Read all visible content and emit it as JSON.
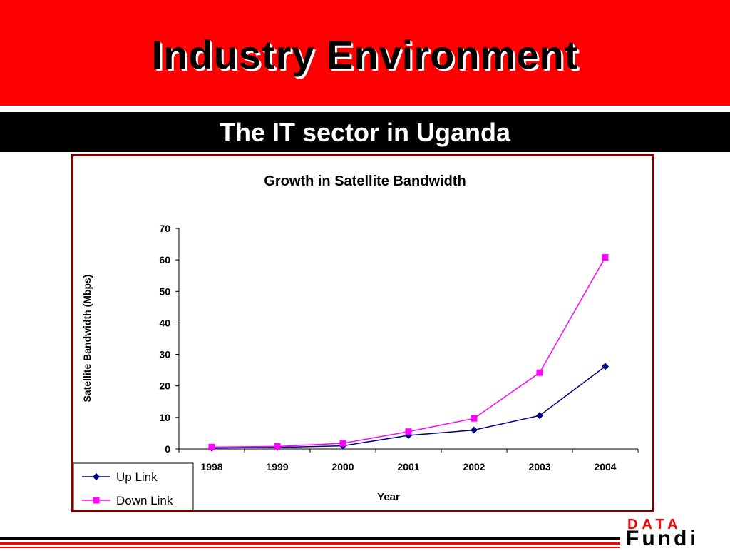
{
  "slide": {
    "title": "Industry Environment",
    "subtitle": "The IT sector in Uganda",
    "logo_top": "DATA",
    "logo_bottom": "Fundi"
  },
  "colors": {
    "header": "#ff0000",
    "subheader": "#000000",
    "frame": "#800000",
    "up_link": "#000080",
    "down_link": "#ff00ff"
  },
  "chart_data": {
    "type": "line",
    "title": "Growth in Satellite Bandwidth",
    "xlabel": "Year",
    "ylabel": "Satellite Bandwidth (Mbps)",
    "categories": [
      "1998",
      "1999",
      "2000",
      "2001",
      "2002",
      "2003",
      "2004"
    ],
    "ylim": [
      0,
      70
    ],
    "yticks": [
      0,
      10,
      20,
      30,
      40,
      50,
      60,
      70
    ],
    "grid": false,
    "legend": "bottom-left",
    "series": [
      {
        "name": "Up Link",
        "marker": "diamond",
        "values": [
          0.3,
          0.5,
          1.0,
          4.3,
          6.0,
          10.6,
          26.2
        ]
      },
      {
        "name": "Down Link",
        "marker": "square",
        "values": [
          0.6,
          0.8,
          1.8,
          5.5,
          9.7,
          24.2,
          60.8
        ]
      }
    ]
  }
}
